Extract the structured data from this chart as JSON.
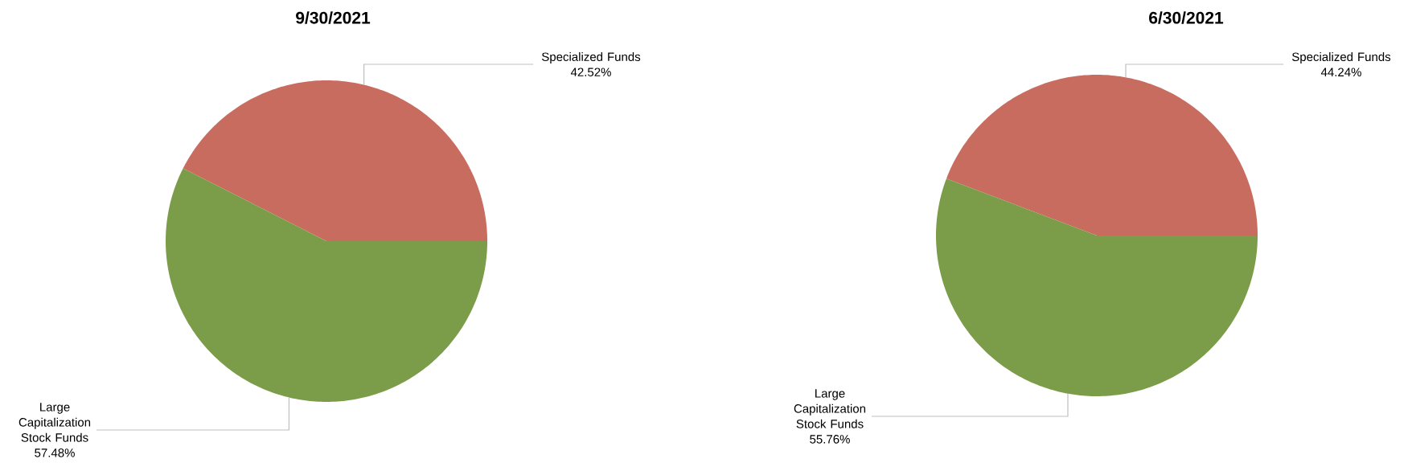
{
  "chart_data": [
    {
      "type": "pie",
      "title": "9/30/2021",
      "categories": [
        "Specialized Funds",
        "Large Capitalization Stock Funds"
      ],
      "values": [
        42.52,
        57.48
      ],
      "colors": [
        "#c96c60",
        "#7b9c48"
      ],
      "value_labels": [
        "42.52%",
        "57.48%"
      ]
    },
    {
      "type": "pie",
      "title": "6/30/2021",
      "categories": [
        "Specialized Funds",
        "Large Capitalization Stock Funds"
      ],
      "values": [
        44.24,
        55.76
      ],
      "colors": [
        "#c96c60",
        "#7b9c48"
      ],
      "value_labels": [
        "44.24%",
        "55.76%"
      ]
    }
  ]
}
